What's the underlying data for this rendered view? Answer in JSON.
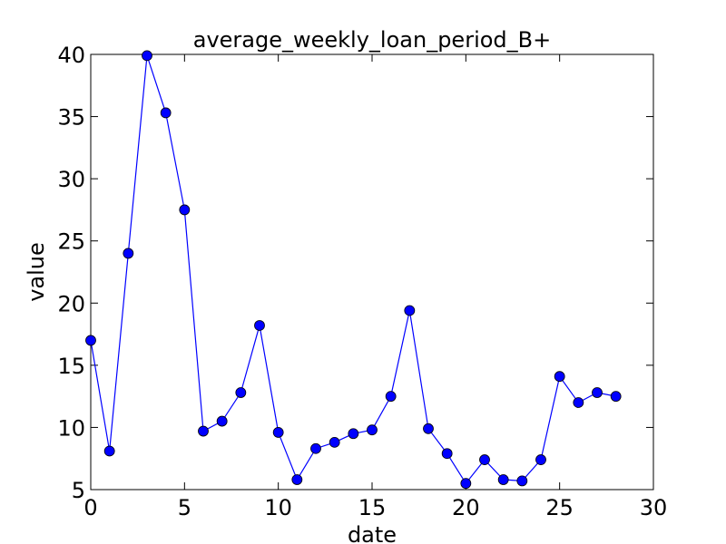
{
  "chart_data": {
    "type": "line",
    "title": "average_weekly_loan_period_B+",
    "xlabel": "date",
    "ylabel": "value",
    "xlim": [
      0,
      30
    ],
    "ylim": [
      5,
      40
    ],
    "xticks": [
      0,
      5,
      10,
      15,
      20,
      25,
      30
    ],
    "yticks": [
      5,
      10,
      15,
      20,
      25,
      30,
      35,
      40
    ],
    "grid": false,
    "series": [
      {
        "color": "#0000ff",
        "marker": "circle",
        "x": [
          0,
          1,
          2,
          3,
          4,
          5,
          6,
          7,
          8,
          9,
          10,
          11,
          12,
          13,
          14,
          15,
          16,
          17,
          18,
          19,
          20,
          21,
          22,
          23,
          24,
          25,
          26,
          27,
          28
        ],
        "y": [
          17.0,
          8.1,
          24.0,
          39.9,
          35.3,
          27.5,
          9.7,
          10.5,
          12.8,
          18.2,
          9.6,
          5.8,
          8.3,
          8.8,
          9.5,
          9.8,
          12.5,
          19.4,
          9.9,
          7.9,
          5.5,
          7.4,
          5.8,
          5.7,
          7.4,
          14.1,
          12.0,
          12.8,
          12.5
        ]
      }
    ]
  }
}
